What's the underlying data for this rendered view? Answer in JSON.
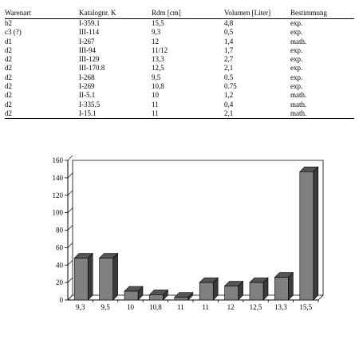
{
  "table": {
    "columns": [
      "Warenart",
      "Katalognr. K",
      "Rdm [cm]",
      "Volumen [Liter]",
      "Bestimmung"
    ],
    "rows": [
      [
        "b2",
        "I-359.1",
        "15,5",
        "4,8",
        "exp."
      ],
      [
        "c3 (?)",
        "III-114",
        "9,3",
        "0,5",
        "exp."
      ],
      [
        "d1",
        "I-267",
        "12",
        "1,4",
        "math."
      ],
      [
        "d2",
        "III-94",
        "11/12",
        "1,7",
        "exp."
      ],
      [
        "d2",
        "III-129",
        "13,3",
        "2,7",
        "exp."
      ],
      [
        "d2",
        "III-170.8",
        "12,5",
        "2,1",
        "exp."
      ],
      [
        "d2",
        "I-268",
        "9,5",
        "0.5",
        "exp."
      ],
      [
        "d2",
        "I-269",
        "10,8",
        "0.75",
        "exp."
      ],
      [
        "d2",
        "II-5.1",
        "10",
        "1,2",
        "math."
      ],
      [
        "d2",
        "I-335.5",
        "11",
        "0,4",
        "math."
      ],
      [
        "d2",
        "I-15.1",
        "11",
        "2,1",
        "math."
      ]
    ]
  },
  "chart_data": {
    "type": "bar",
    "categories": [
      "9,3",
      "9,5",
      "10",
      "10,8",
      "11",
      "11",
      "12",
      "12,5",
      "13,3",
      "15,5"
    ],
    "values": [
      48,
      48,
      10,
      6,
      3,
      20,
      16,
      20,
      26,
      147
    ],
    "yticks": [
      0,
      20,
      40,
      60,
      80,
      100,
      120,
      140,
      160
    ],
    "ylim": [
      0,
      160
    ],
    "bar_color": "#808080",
    "bar_top_color": "#555555",
    "bar_side_color": "#3a3a3a",
    "title": "",
    "xlabel": "",
    "ylabel": "",
    "grid": false
  }
}
